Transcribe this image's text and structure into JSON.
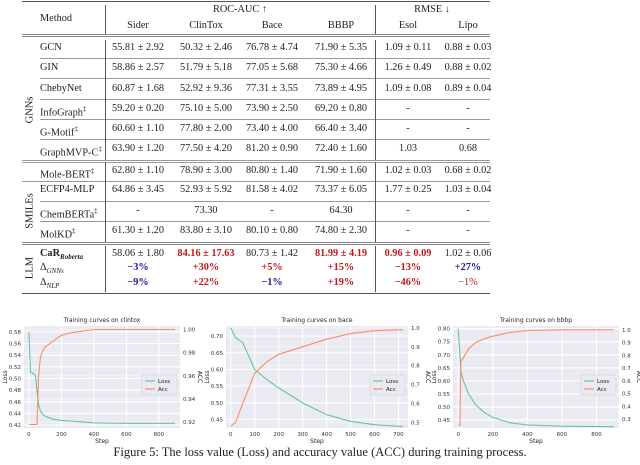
{
  "table": {
    "header": {
      "method": "Method",
      "roc_auc": "ROC-AUC ↑",
      "rmse": "RMSE ↓",
      "columns": [
        "Sider",
        "ClinTox",
        "Bace",
        "BBBP",
        "Esol",
        "Lipo"
      ]
    },
    "groups": [
      "GNNs",
      "SMILEs",
      "LLM"
    ],
    "rows": [
      {
        "name": "GCN",
        "values": [
          "55.81 ± 2.92",
          "50.32 ± 2.46",
          "76.78 ± 4.74",
          "71.90 ± 5.35",
          "1.09 ± 0.11",
          "0.88 ± 0.03"
        ]
      },
      {
        "name": "GIN",
        "values": [
          "58.86 ± 2.57",
          "51.79 ± 5.18",
          "77.05 ± 5.68",
          "75.30 ± 4.66",
          "1.26 ± 0.49",
          "0.88 ± 0.02"
        ]
      },
      {
        "name": "ChebyNet",
        "values": [
          "60.87 ± 1.68",
          "52.92 ± 9.36",
          "77.31 ± 3.55",
          "73.89 ± 4.95",
          "1.09 ± 0.08",
          "0.89 ± 0.04"
        ]
      },
      {
        "name": "InfoGraph",
        "sup": "‡",
        "values": [
          "59.20 ± 0.20",
          "75.10 ± 5.00",
          "73.90 ± 2.50",
          "69.20 ± 0.80",
          "-",
          "-"
        ]
      },
      {
        "name": "G-Motif",
        "sup": "‡",
        "values": [
          "60.60 ± 1.10",
          "77.80 ± 2.00",
          "73.40 ± 4.00",
          "66.40 ± 3.40",
          "-",
          "-"
        ]
      },
      {
        "name": "GraphMVP-C",
        "sup": "‡",
        "values": [
          "63.90 ± 1.20",
          "77.50 ± 4.20",
          "81.20 ± 0.90",
          "72.40 ± 1.60",
          "1.03",
          "0.68"
        ]
      },
      {
        "name": "Mole-BERT",
        "sup": "‡",
        "values": [
          "62.80 ± 1.10",
          "78.90 ± 3.00",
          "80.80 ± 1.40",
          "71.90 ± 1.60",
          "1.02 ± 0.03",
          "0.68 ± 0.02"
        ]
      },
      {
        "name": "ECFP4-MLP",
        "values": [
          "64.86 ± 3.45",
          "52.93 ± 5.92",
          "81.58 ± 4.02",
          "73.37 ± 6.05",
          "1.77 ± 0.25",
          "1.03 ± 0.04"
        ]
      },
      {
        "name": "ChemBERTa",
        "sup": "‡",
        "values": [
          "-",
          "73.30",
          "-",
          "64.30",
          "-",
          "-"
        ]
      },
      {
        "name": "MolKD",
        "sup": "‡",
        "values": [
          "61.30 ± 1.20",
          "83.80 ± 3.10",
          "80.10 ± 0.80",
          "74.80 ± 2.30",
          "-",
          "-"
        ]
      },
      {
        "name": "CaR",
        "sub": "Roberta",
        "bold": true,
        "values": [
          "58.06 ± 1.80",
          "84.16 ± 17.63",
          "80.73 ± 1.42",
          "81.99 ± 4.19",
          "0.96 ± 0.09",
          "1.02 ± 0.06"
        ],
        "styles": [
          "",
          "red",
          "",
          "red",
          "red",
          ""
        ]
      },
      {
        "name": "Δ",
        "sub": "GNNs",
        "values": [
          "−3%",
          "+30%",
          "+5%",
          "+15%",
          "−13%",
          "+27%"
        ],
        "styles": [
          "blue",
          "red",
          "red",
          "red",
          "red",
          "blue"
        ]
      },
      {
        "name": "Δ",
        "sub": "NLP",
        "values": [
          "−9%",
          "+22%",
          "−1%",
          "+19%",
          "−46%",
          "−1%"
        ],
        "styles": [
          "blue",
          "red",
          "blue",
          "red",
          "red",
          "redn"
        ]
      }
    ]
  },
  "colors": {
    "loss": "#66c2a5",
    "acc": "#fc8d62",
    "plot_bg": "#eaeaf2",
    "highlight_red": "#c4161c",
    "highlight_blue": "#1b1b8f"
  },
  "chart_data": [
    {
      "type": "line",
      "title": "Training curves on clintox",
      "xlabel": "Step",
      "ylabel": "Loss",
      "y2label": "ACC",
      "xlim": [
        -30,
        930
      ],
      "ylim": [
        0.415,
        0.59
      ],
      "y2lim": [
        0.915,
        1.003
      ],
      "xticks": [
        0,
        200,
        400,
        600,
        800
      ],
      "yticks": [
        0.42,
        0.44,
        0.46,
        0.48,
        0.5,
        0.52,
        0.54,
        0.56,
        0.58
      ],
      "y2ticks": [
        0.92,
        0.94,
        0.96,
        0.98,
        1.0
      ],
      "grid": true,
      "legend": "center-right",
      "x": [
        0,
        10,
        20,
        40,
        50,
        60,
        70,
        80,
        100,
        150,
        200,
        250,
        300,
        400,
        600,
        900
      ],
      "series": [
        {
          "name": "Loss",
          "axis": "left",
          "values": [
            0.58,
            0.51,
            0.51,
            0.505,
            0.48,
            0.455,
            0.445,
            0.44,
            0.435,
            0.43,
            0.428,
            0.427,
            0.426,
            0.424,
            0.423,
            0.423
          ]
        },
        {
          "name": "Acc",
          "axis": "right",
          "values": [
            0.918,
            0.918,
            0.918,
            0.918,
            0.918,
            0.96,
            0.975,
            0.98,
            0.985,
            0.99,
            0.995,
            0.997,
            0.998,
            1.0,
            1.0,
            1.0
          ]
        }
      ]
    },
    {
      "type": "line",
      "title": "Training curves on bace",
      "xlabel": "Step",
      "ylabel": "Loss",
      "y2label": "ACC",
      "xlim": [
        -20,
        740
      ],
      "ylim": [
        0.425,
        0.73
      ],
      "y2lim": [
        0.47,
        1.01
      ],
      "xticks": [
        0,
        100,
        200,
        300,
        400,
        500,
        600,
        700
      ],
      "yticks": [
        0.45,
        0.5,
        0.55,
        0.6,
        0.65,
        0.7
      ],
      "y2ticks": [
        0.5,
        0.6,
        0.7,
        0.8,
        0.9,
        1.0
      ],
      "grid": true,
      "legend": "center-right",
      "x": [
        0,
        20,
        50,
        100,
        150,
        200,
        300,
        400,
        500,
        600,
        700,
        720
      ],
      "series": [
        {
          "name": "Loss",
          "axis": "left",
          "values": [
            0.725,
            0.695,
            0.68,
            0.6,
            0.57,
            0.545,
            0.5,
            0.465,
            0.445,
            0.435,
            0.43,
            0.43
          ]
        },
        {
          "name": "Acc",
          "axis": "right",
          "values": [
            0.48,
            0.5,
            0.6,
            0.76,
            0.82,
            0.86,
            0.9,
            0.94,
            0.97,
            0.985,
            0.99,
            0.99
          ]
        }
      ]
    },
    {
      "type": "line",
      "title": "Training curves on bbbp",
      "xlabel": "Step",
      "ylabel": "Loss",
      "y2label": "ACC",
      "xlim": [
        -30,
        930
      ],
      "ylim": [
        0.42,
        0.81
      ],
      "y2lim": [
        0.23,
        1.03
      ],
      "xticks": [
        0,
        200,
        400,
        600,
        800
      ],
      "yticks": [
        0.45,
        0.5,
        0.55,
        0.6,
        0.65,
        0.7,
        0.75,
        0.8
      ],
      "y2ticks": [
        0.3,
        0.4,
        0.5,
        0.6,
        0.7,
        0.8,
        0.9,
        1.0
      ],
      "grid": true,
      "legend": "center-right",
      "x": [
        0,
        10,
        15,
        30,
        60,
        100,
        150,
        200,
        300,
        400,
        600,
        900
      ],
      "series": [
        {
          "name": "Loss",
          "axis": "left",
          "values": [
            0.8,
            0.7,
            0.64,
            0.6,
            0.55,
            0.51,
            0.48,
            0.46,
            0.44,
            0.432,
            0.427,
            0.425
          ]
        },
        {
          "name": "Acc",
          "axis": "right",
          "values": [
            0.25,
            0.25,
            0.75,
            0.78,
            0.85,
            0.9,
            0.93,
            0.95,
            0.98,
            0.995,
            1.0,
            1.0
          ]
        }
      ]
    }
  ],
  "caption": "Figure 5: The loss value (Loss) and accuracy value (ACC) during training process."
}
